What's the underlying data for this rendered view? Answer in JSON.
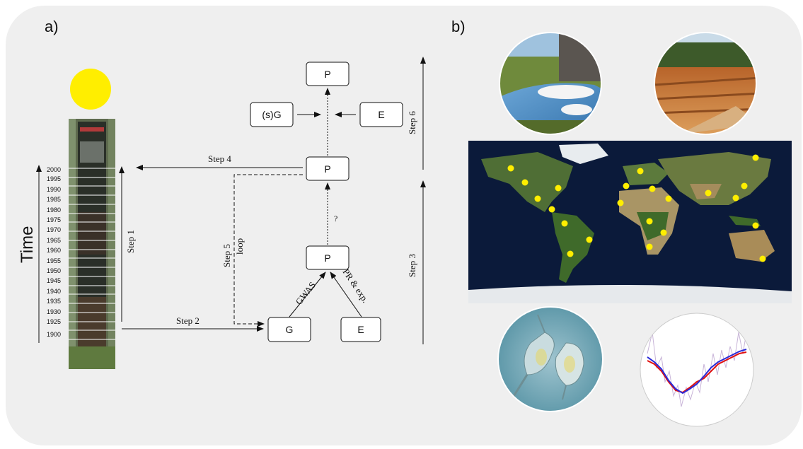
{
  "panels": {
    "a": "a)",
    "b": "b)"
  },
  "timeline": {
    "axis_label": "Time",
    "years": [
      "2000",
      "1995",
      "1990",
      "1985",
      "1980",
      "1975",
      "1970",
      "1965",
      "1960",
      "1955",
      "1950",
      "1945",
      "1940",
      "1935",
      "1930",
      "1925",
      "1900"
    ]
  },
  "boxes": {
    "p_top": "P",
    "sg": "(s)G",
    "e_top": "E",
    "p_mid": "P",
    "p_low": "P",
    "g": "G",
    "e_bottom": "E"
  },
  "labels": {
    "step1": "Step 1",
    "step2": "Step 2",
    "step3": "Step 3",
    "step4": "Step 4",
    "step5": "Step 5",
    "loop": "loop",
    "step6": "Step 6",
    "question": "?",
    "gwas": "GWAS",
    "pr_exp": "PR & exp."
  },
  "colors": {
    "sun": "#ffee00",
    "map_dot": "#ffee00",
    "ocean": "#0b1a3a"
  }
}
